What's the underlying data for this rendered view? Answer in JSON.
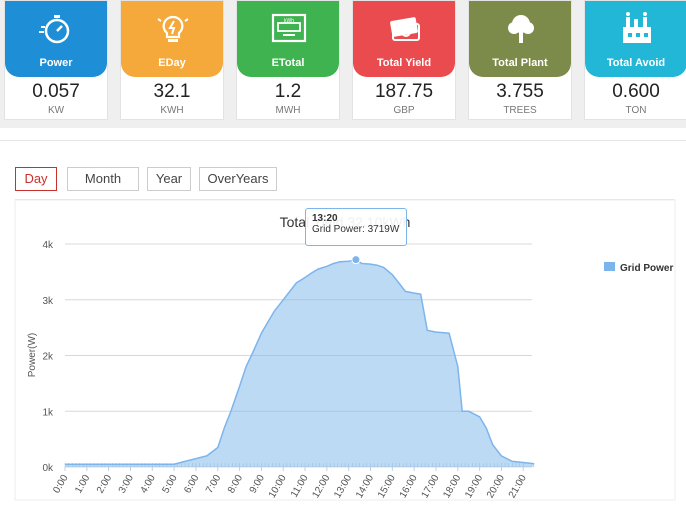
{
  "cards": [
    {
      "label": "Power",
      "value": "0.057",
      "unit": "KW",
      "color": "#1e8fd6",
      "icon": "stopwatch-icon"
    },
    {
      "label": "EDay",
      "value": "32.1",
      "unit": "KWH",
      "color": "#f4a93a",
      "icon": "lightbulb-icon"
    },
    {
      "label": "ETotal",
      "value": "1.2",
      "unit": "MWH",
      "color": "#3fb34f",
      "icon": "meter-icon"
    },
    {
      "label": "Total Yield",
      "value": "187.75",
      "unit": "GBP",
      "color": "#e94b4f",
      "icon": "banknotes-icon"
    },
    {
      "label": "Total Plant",
      "value": "3.755",
      "unit": "TREES",
      "color": "#7c8a4a",
      "icon": "tree-icon"
    },
    {
      "label": "Total Avoid",
      "value": "0.600",
      "unit": "TON",
      "color": "#22b7d6",
      "icon": "factory-icon"
    }
  ],
  "tabs": [
    "Day",
    "Month",
    "Year",
    "OverYears"
  ],
  "tooltip": {
    "time": "13:20",
    "text": "Grid Power: 3719W"
  },
  "chart_data": {
    "type": "area",
    "title": "Total Yield 32.10kWh",
    "ylabel": "Power(W)",
    "xlabel": "",
    "ylim": [
      0,
      4000
    ],
    "y_ticks": [
      "0k",
      "1k",
      "2k",
      "3k",
      "4k"
    ],
    "x_ticks": [
      "0:00",
      "1:00",
      "2:00",
      "3:00",
      "4:00",
      "5:00",
      "6:00",
      "7:00",
      "8:00",
      "9:00",
      "10:00",
      "11:00",
      "12:00",
      "13:00",
      "14:00",
      "15:00",
      "16:00",
      "17:00",
      "18:00",
      "19:00",
      "20:00",
      "21:00"
    ],
    "legend_position": "right",
    "grid": true,
    "series": [
      {
        "name": "Grid Power",
        "color": "#7cb5ec",
        "x": [
          0,
          5,
          5.5,
          6,
          6.5,
          7,
          7.3,
          7.6,
          8,
          8.3,
          8.6,
          9,
          9.3,
          9.6,
          10,
          10.3,
          10.6,
          11,
          11.3,
          11.6,
          12,
          12.3,
          12.6,
          13,
          13.33,
          13.6,
          14,
          14.3,
          14.6,
          15,
          15.3,
          15.6,
          16,
          16.3,
          16.6,
          17,
          17.3,
          17.6,
          18,
          18.2,
          18.5,
          19,
          19.3,
          19.6,
          20,
          20.5,
          21,
          21.5
        ],
        "y": [
          50,
          50,
          100,
          150,
          200,
          350,
          700,
          1000,
          1450,
          1800,
          2050,
          2400,
          2600,
          2800,
          3000,
          3150,
          3300,
          3400,
          3480,
          3550,
          3600,
          3650,
          3680,
          3690,
          3719,
          3650,
          3640,
          3620,
          3580,
          3450,
          3300,
          3150,
          3120,
          3100,
          2450,
          2420,
          2410,
          2400,
          1800,
          1000,
          1000,
          900,
          700,
          400,
          200,
          100,
          80,
          60
        ]
      }
    ]
  }
}
